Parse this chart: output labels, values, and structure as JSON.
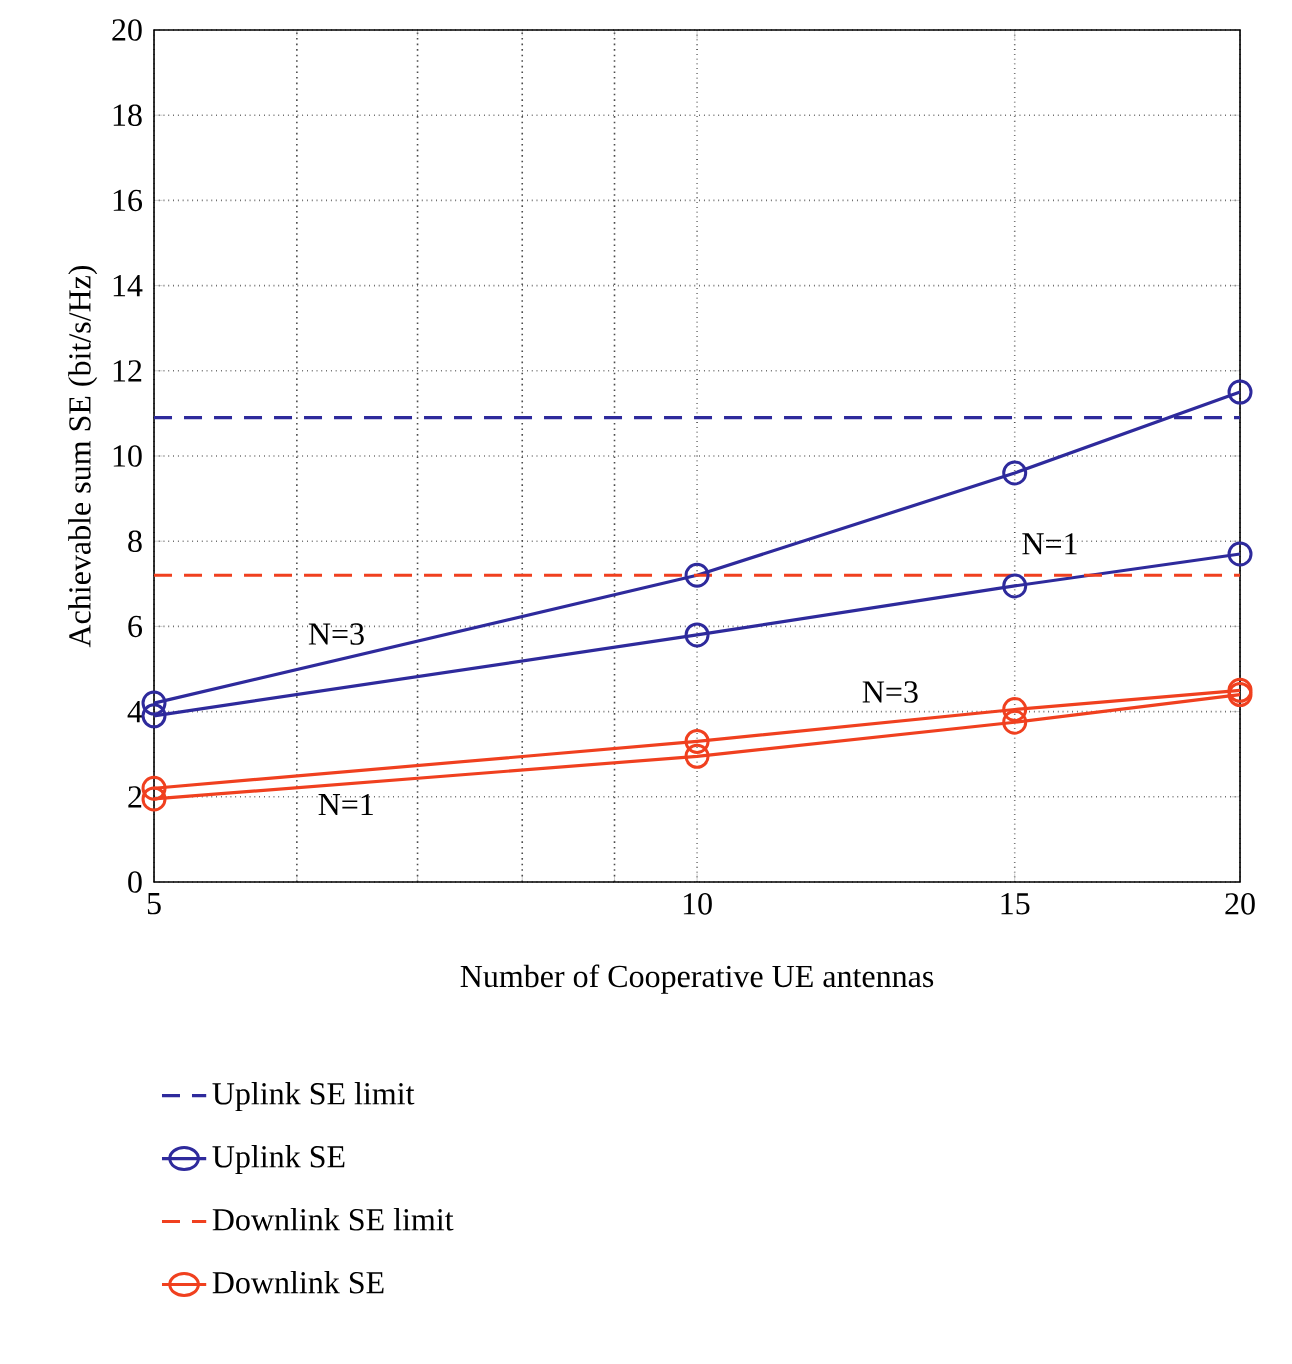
{
  "chart_data": {
    "type": "line",
    "xlabel": "Number of Cooperative UE antennas",
    "ylabel": "Achievable sum SE (bit/s/Hz)",
    "log": "x",
    "grid": true,
    "legend": "bottom",
    "xlim": [
      5,
      20
    ],
    "xticks": [
      5,
      10,
      15,
      20
    ],
    "ylim": [
      0,
      20
    ],
    "yticks": [
      0,
      2,
      4,
      6,
      8,
      10,
      12,
      14,
      16,
      18,
      20
    ],
    "series": [
      {
        "name": "Uplink SE limit",
        "color": "#2e2a9c",
        "line_style": "dashed",
        "marker": "none",
        "x": [
          5,
          20
        ],
        "values": [
          10.9,
          10.9
        ]
      },
      {
        "name": "Uplink SE",
        "color": "#2e2a9c",
        "line_style": "solid",
        "marker": "circle",
        "x": [
          5,
          10,
          15,
          20
        ],
        "values": [
          4.2,
          7.2,
          9.6,
          11.5
        ]
      },
      {
        "color": "#2e2a9c",
        "line_style": "solid",
        "marker": "circle",
        "x": [
          5,
          10,
          15,
          20
        ],
        "values": [
          3.9,
          5.8,
          6.95,
          7.7
        ]
      },
      {
        "name": "Downlink SE limit",
        "color": "#f0401f",
        "line_style": "dashed",
        "marker": "none",
        "x": [
          5,
          20
        ],
        "values": [
          7.2,
          7.2
        ]
      },
      {
        "name": "Downlink SE",
        "color": "#f0401f",
        "line_style": "solid",
        "marker": "circle",
        "x": [
          5,
          10,
          15,
          20
        ],
        "values": [
          2.2,
          3.3,
          4.05,
          4.5
        ]
      },
      {
        "color": "#f0401f",
        "line_style": "solid",
        "marker": "circle",
        "x": [
          5,
          10,
          15,
          20
        ],
        "values": [
          1.95,
          2.95,
          3.75,
          4.4
        ]
      }
    ],
    "annotations": [
      "N=3",
      "N=1",
      "N=3",
      "N=1"
    ]
  }
}
